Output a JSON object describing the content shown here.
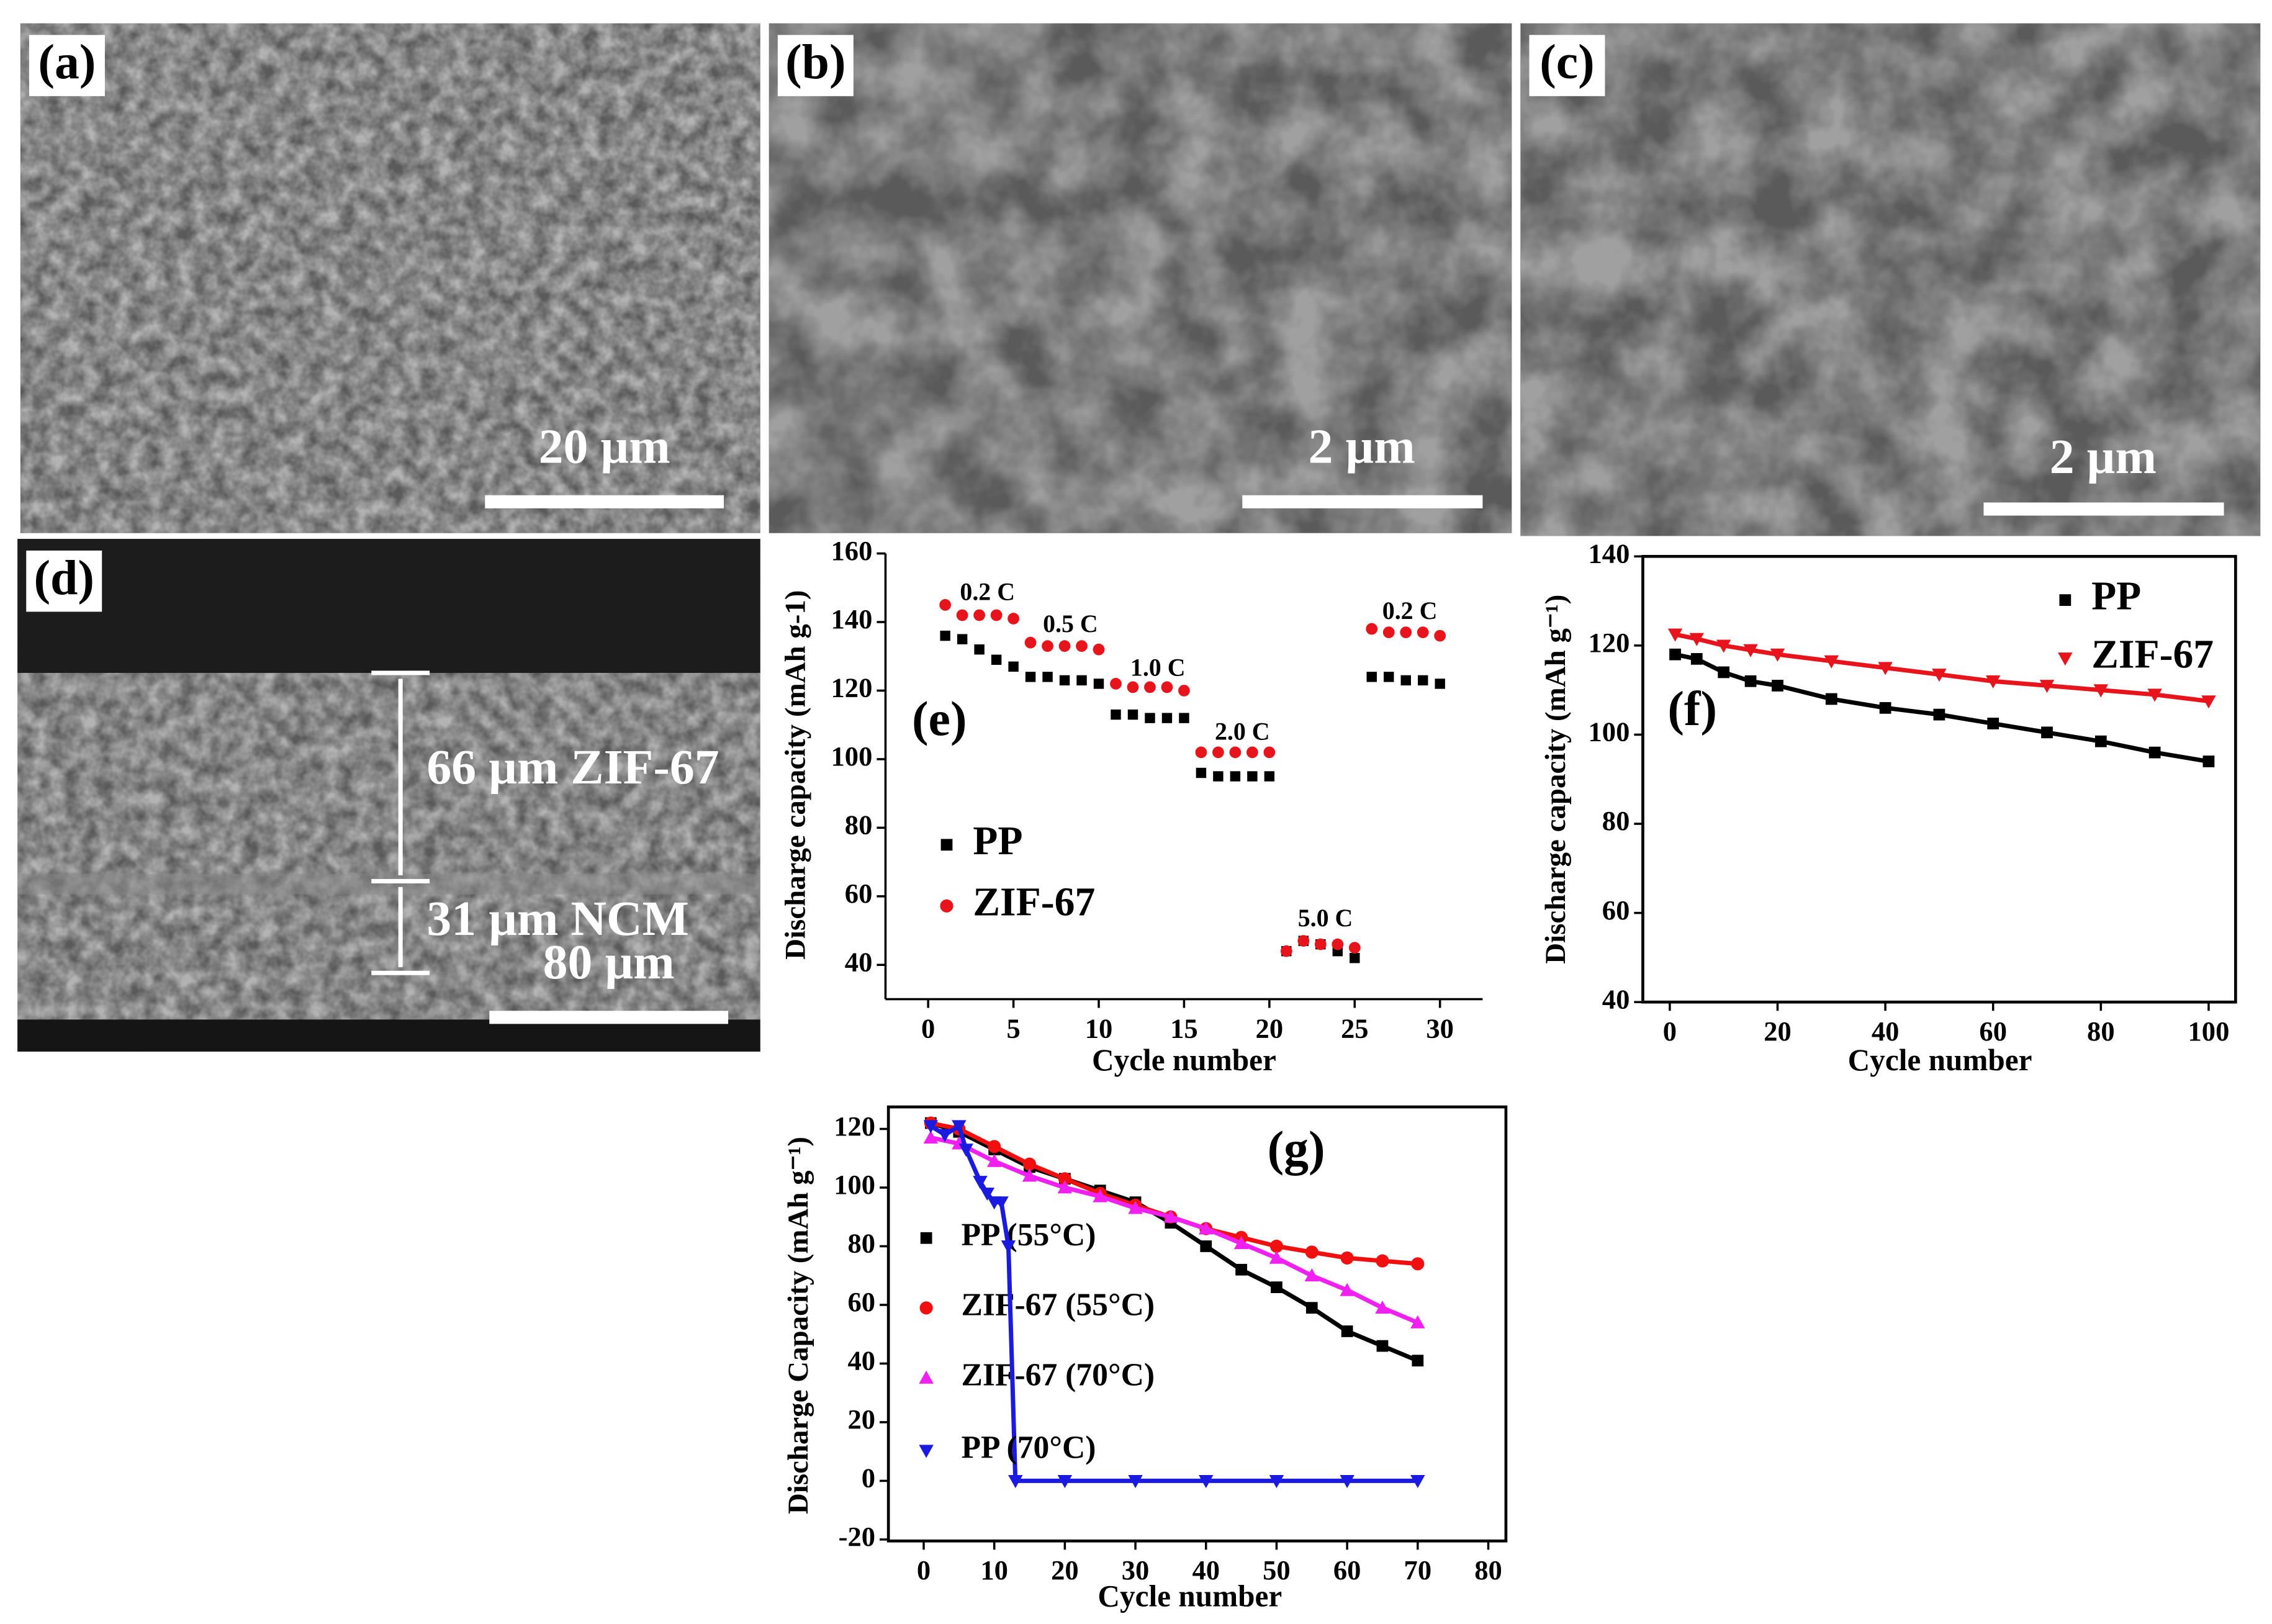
{
  "images": [
    {
      "label": "(a)",
      "scale_bar": "20 µm"
    },
    {
      "label": "(b)",
      "scale_bar": "2 µm"
    },
    {
      "label": "(c)",
      "scale_bar": "2 µm"
    },
    {
      "label": "(d)",
      "scale_bar": "80 µm",
      "annotations": [
        "66 µm ZIF-67",
        "31 µm NCM"
      ]
    }
  ],
  "chart_data": [
    {
      "type": "scatter",
      "panel_label": "(e)",
      "x_label": "Cycle number",
      "y_label": "Discharge capacity (mAh g-1)",
      "x": [
        1,
        2,
        3,
        4,
        5,
        6,
        7,
        8,
        9,
        10,
        11,
        12,
        13,
        14,
        15,
        16,
        17,
        18,
        19,
        20,
        21,
        22,
        23,
        24,
        25,
        26,
        27,
        28,
        29,
        30
      ],
      "series": [
        {
          "name": "PP",
          "color": "#000000",
          "marker": "square",
          "values": [
            136,
            135,
            132,
            129,
            127,
            124,
            124,
            123,
            123,
            122,
            113,
            113,
            112,
            112,
            112,
            96,
            95,
            95,
            95,
            95,
            44,
            47,
            46,
            44,
            42,
            124,
            124,
            123,
            123,
            122
          ]
        },
        {
          "name": "ZIF-67",
          "color": "#e8141c",
          "marker": "circle",
          "values": [
            145,
            142,
            142,
            142,
            141,
            134,
            133,
            133,
            133,
            132,
            122,
            121,
            121,
            121,
            120,
            102,
            102,
            102,
            102,
            102,
            44,
            47,
            46,
            46,
            45,
            138,
            137,
            137,
            137,
            136
          ]
        }
      ],
      "annotations": [
        "0.2 C",
        "0.5 C",
        "1.0 C",
        "2.0 C",
        "5.0 C",
        "0.2 C"
      ],
      "xlim": [
        -2.5,
        32.5
      ],
      "xticks": [
        0,
        5,
        10,
        15,
        20,
        25,
        30
      ],
      "ylim": [
        30,
        160
      ],
      "yticks": [
        40,
        60,
        80,
        100,
        120,
        140,
        160
      ]
    },
    {
      "type": "line",
      "panel_label": "(f)",
      "x_label": "Cycle number",
      "y_label": "Discharge capacity (mAh g⁻¹)",
      "x": [
        1,
        5,
        10,
        15,
        20,
        30,
        40,
        50,
        60,
        70,
        80,
        90,
        100
      ],
      "series": [
        {
          "name": "PP",
          "color": "#000000",
          "marker": "square",
          "values": [
            118,
            117,
            114,
            112,
            111,
            108,
            106,
            104.5,
            102.5,
            100.5,
            98.5,
            96,
            94
          ]
        },
        {
          "name": "ZIF-67",
          "color": "#e8141c",
          "marker": "triangle-down",
          "values": [
            122.5,
            121.5,
            120,
            119,
            118,
            116.5,
            115,
            113.5,
            112,
            111,
            110,
            109,
            107.5
          ]
        }
      ],
      "xlim": [
        -5,
        105
      ],
      "xticks": [
        0,
        20,
        40,
        60,
        80,
        100
      ],
      "ylim": [
        40,
        140
      ],
      "yticks": [
        40,
        60,
        80,
        100,
        120,
        140
      ]
    },
    {
      "type": "line",
      "panel_label": "(g)",
      "x_label": "Cycle number",
      "y_label": "Discharge Capacity (mAh g⁻¹)",
      "series": [
        {
          "name": "PP (55°C)",
          "color": "#000000",
          "marker": "square",
          "x": [
            1,
            5,
            10,
            15,
            20,
            25,
            30,
            35,
            40,
            45,
            50,
            55,
            60,
            65,
            70
          ],
          "values": [
            122,
            119,
            113,
            107,
            103,
            99,
            95,
            88,
            80,
            72,
            66,
            59,
            51,
            46,
            41
          ]
        },
        {
          "name": "ZIF-67 (55°C)",
          "color": "#f01010",
          "marker": "circle",
          "x": [
            1,
            5,
            10,
            15,
            20,
            25,
            30,
            35,
            40,
            45,
            50,
            55,
            60,
            65,
            70
          ],
          "values": [
            122,
            120,
            114,
            108,
            103,
            98,
            94,
            90,
            86,
            83,
            80,
            78,
            76,
            75,
            74
          ]
        },
        {
          "name": "ZIF-67 (70°C)",
          "color": "#f020f0",
          "marker": "triangle",
          "x": [
            1,
            5,
            10,
            15,
            20,
            25,
            30,
            35,
            40,
            45,
            50,
            55,
            60,
            65,
            70
          ],
          "values": [
            117,
            115,
            109,
            104,
            100,
            97,
            93,
            90,
            86,
            81,
            76,
            70,
            65,
            59,
            54
          ]
        },
        {
          "name": "PP (70°C)",
          "color": "#1a1ae0",
          "marker": "triangle-down",
          "x": [
            1,
            3,
            5,
            6,
            8,
            9,
            10,
            11,
            12,
            13,
            20,
            30,
            40,
            50,
            60,
            70
          ],
          "values": [
            121,
            118,
            121,
            113,
            102,
            98,
            95,
            95,
            80,
            0,
            0,
            0,
            0,
            0,
            0,
            0
          ]
        }
      ],
      "xlim": [
        -5,
        82.5
      ],
      "xticks": [
        0,
        10,
        20,
        30,
        40,
        50,
        60,
        70,
        80
      ],
      "ylim": [
        -20.5,
        127.5
      ],
      "yticks": [
        -20,
        0,
        20,
        40,
        60,
        80,
        100,
        120
      ]
    }
  ]
}
